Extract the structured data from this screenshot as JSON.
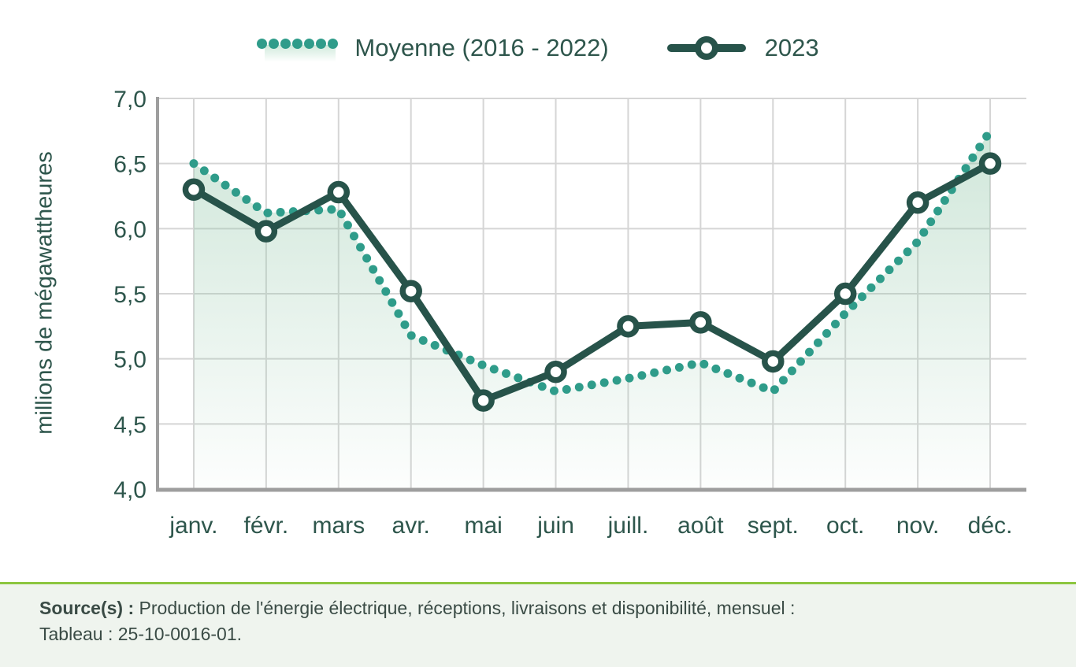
{
  "y_axis": {
    "title": "millions de mégawattheures",
    "tick_labels": [
      "7,0",
      "6,5",
      "6,0",
      "5,5",
      "5,0",
      "4,5",
      "4,0"
    ]
  },
  "source": {
    "label": "Source(s) :",
    "line1_rest": " Production de l'énergie électrique, réceptions, livraisons et disponibilité, mensuel :",
    "line2": "Tableau : 25-10-0016-01."
  },
  "colors": {
    "teal": "#2F9C8A",
    "dark_green": "#27534A",
    "text_green": "#2E564C",
    "grid": "#D5D5D5",
    "axis": "#9E9E9E",
    "area_top": "rgba(150,201,172,0.45)",
    "area_bottom": "rgba(150,201,172,0.02)",
    "source_border": "#8CC63F",
    "source_bg": "#EFF4EE"
  },
  "chart_data": {
    "type": "line",
    "categories": [
      "janv.",
      "févr.",
      "mars",
      "avr.",
      "mai",
      "juin",
      "juill.",
      "août",
      "sept.",
      "oct.",
      "nov.",
      "déc."
    ],
    "series": [
      {
        "name": "Moyenne (2016 - 2022)",
        "style": "dotted",
        "area_fill": true,
        "values": [
          6.5,
          6.12,
          6.15,
          5.18,
          4.95,
          4.75,
          4.85,
          4.97,
          4.75,
          5.35,
          5.9,
          6.75
        ]
      },
      {
        "name": "2023",
        "style": "solid-markers",
        "values": [
          6.3,
          5.98,
          6.28,
          5.52,
          4.68,
          4.9,
          5.25,
          5.28,
          4.98,
          5.5,
          6.2,
          6.5
        ]
      }
    ],
    "xlabel": "",
    "ylabel": "millions de mégawattheures",
    "ylim": [
      4.0,
      7.0
    ],
    "y_step": 0.5,
    "grid": true,
    "legend_position": "top"
  }
}
